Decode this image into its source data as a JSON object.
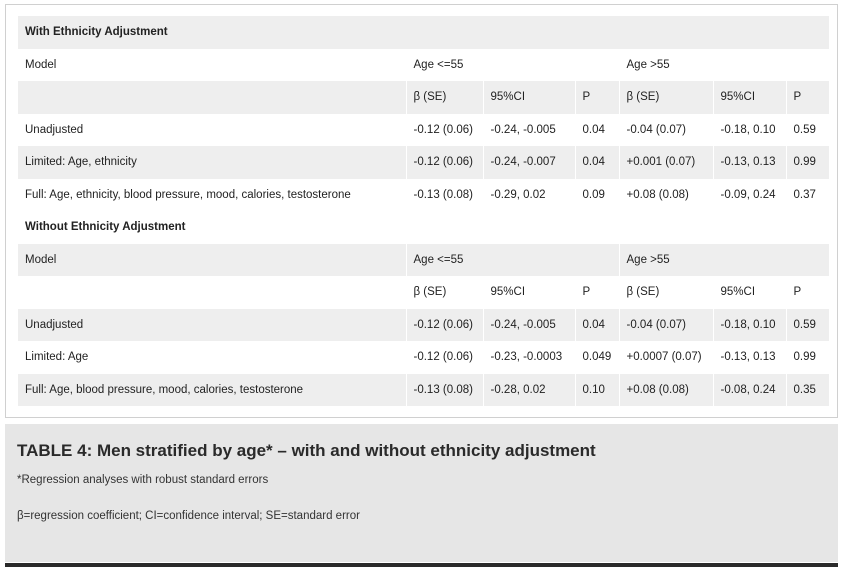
{
  "table": {
    "sections": [
      {
        "heading": "With Ethnicity Adjustment",
        "group_header": {
          "model": "Model",
          "age_young": "Age <=55",
          "age_old": "Age >55"
        },
        "sub_header": [
          "β (SE)",
          "95%CI",
          "P",
          "β (SE)",
          "95%CI",
          "P"
        ],
        "rows": [
          {
            "model": "Unadjusted",
            "cells": [
              "-0.12 (0.06)",
              "-0.24, -0.005",
              "0.04",
              "-0.04 (0.07)",
              "-0.18, 0.10",
              "0.59"
            ]
          },
          {
            "model": "Limited: Age, ethnicity",
            "cells": [
              "-0.12 (0.06)",
              "-0.24, -0.007",
              "0.04",
              "+0.001 (0.07)",
              "-0.13, 0.13",
              "0.99"
            ]
          },
          {
            "model": "Full: Age, ethnicity, blood pressure, mood, calories, testosterone",
            "cells": [
              "-0.13 (0.08)",
              "-0.29, 0.02",
              "0.09",
              "+0.08 (0.08)",
              "-0.09, 0.24",
              "0.37"
            ]
          }
        ]
      },
      {
        "heading": "Without Ethnicity Adjustment",
        "group_header": {
          "model": "Model",
          "age_young": "Age <=55",
          "age_old": "Age >55"
        },
        "sub_header": [
          "β (SE)",
          "95%CI",
          "P",
          "β (SE)",
          "95%CI",
          "P"
        ],
        "rows": [
          {
            "model": "Unadjusted",
            "cells": [
              "-0.12 (0.06)",
              "-0.24, -0.005",
              "0.04",
              "-0.04 (0.07)",
              "-0.18, 0.10",
              "0.59"
            ]
          },
          {
            "model": "Limited: Age",
            "cells": [
              "-0.12 (0.06)",
              "-0.23, -0.0003",
              "0.049",
              "+0.0007 (0.07)",
              "-0.13, 0.13",
              "0.99"
            ]
          },
          {
            "model": "Full: Age, blood pressure, mood, calories, testosterone",
            "cells": [
              "-0.13 (0.08)",
              "-0.28, 0.02",
              "0.10",
              "+0.08 (0.08)",
              "-0.08, 0.24",
              "0.35"
            ]
          }
        ]
      }
    ]
  },
  "caption": {
    "title": "TABLE 4: Men stratified by age* – with and without ethnicity adjustment",
    "footnote": "*Regression analyses with robust standard errors",
    "abbreviations": "β=regression coefficient; CI=confidence interval; SE=standard error"
  },
  "colors": {
    "shade": "#eeeeee",
    "caption_bg": "#e6e6e6",
    "rule": "#2a2a2a"
  }
}
